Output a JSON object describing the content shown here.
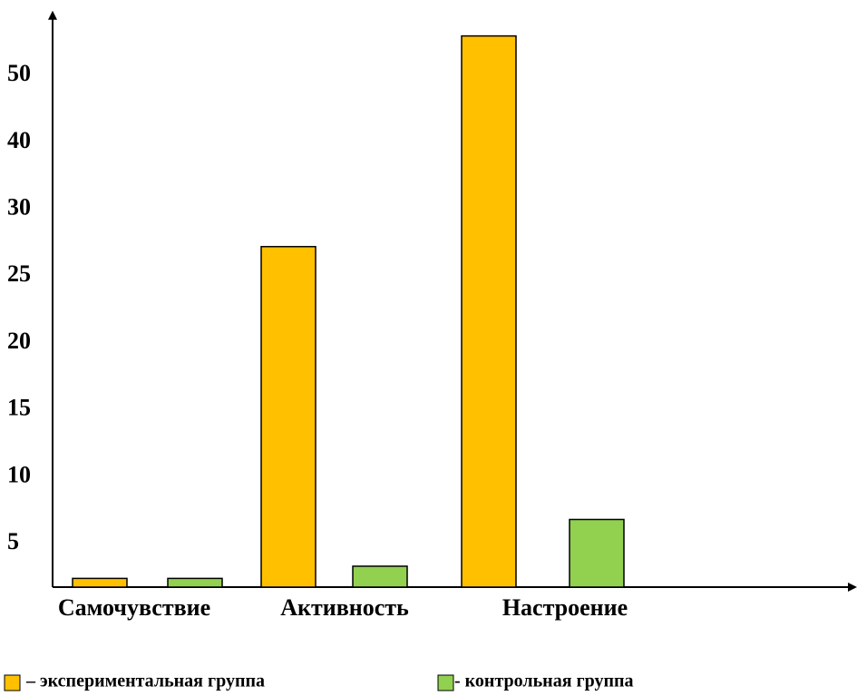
{
  "chart_data": {
    "type": "bar",
    "categories": [
      "Самочувствие",
      "Активность",
      "Настроение"
    ],
    "series": [
      {
        "name": "– экспериментальная группа",
        "color": "#ffc000",
        "values": [
          1,
          27.2,
          55.9
        ]
      },
      {
        "name": "- контрольная группа",
        "color": "#92d050",
        "values": [
          1,
          2.4,
          6.8
        ]
      }
    ],
    "ylim": [
      0,
      59
    ],
    "yticks": [
      5,
      10,
      15,
      20,
      25,
      30,
      40,
      50
    ],
    "legend": "bottom"
  }
}
